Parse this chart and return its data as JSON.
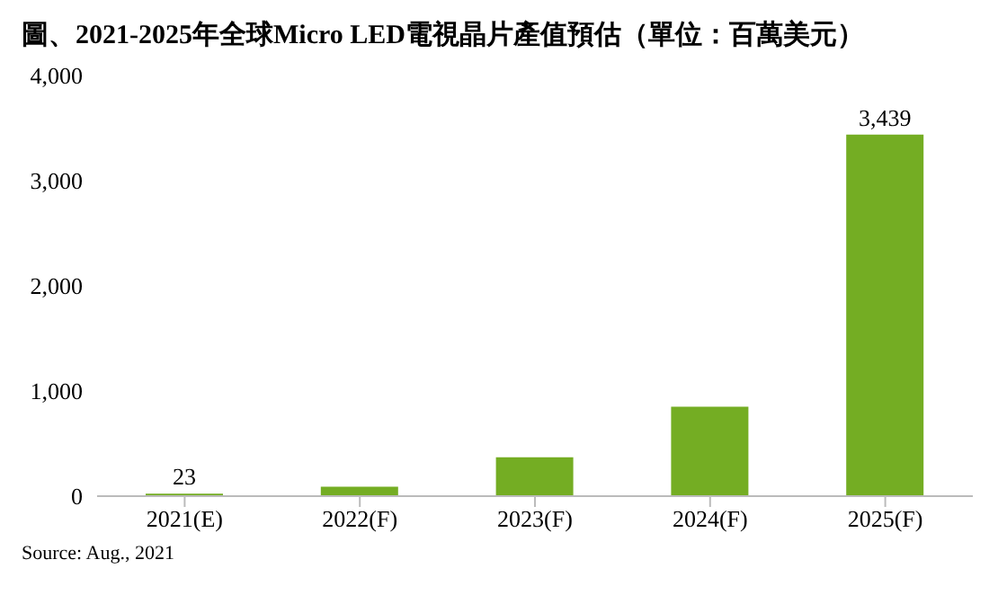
{
  "chart_data": {
    "type": "bar",
    "title": "圖、2021-2025年全球Micro LED電視晶片產值預估（單位：百萬美元）",
    "categories": [
      "2021(E)",
      "2022(F)",
      "2023(F)",
      "2024(F)",
      "2025(F)"
    ],
    "values": [
      23,
      90,
      370,
      850,
      3439
    ],
    "value_labels": [
      "23",
      null,
      null,
      null,
      "3,439"
    ],
    "color": "#74ad23",
    "ylim": [
      0,
      4000
    ],
    "yticks": [
      {
        "value": 0,
        "label": "0"
      },
      {
        "value": 1000,
        "label": "1,000"
      },
      {
        "value": 2000,
        "label": "2,000"
      },
      {
        "value": 3000,
        "label": "3,000"
      },
      {
        "value": 4000,
        "label": "4,000"
      }
    ],
    "grid": false,
    "annotations": [
      "Source: Aug., 2021"
    ]
  }
}
